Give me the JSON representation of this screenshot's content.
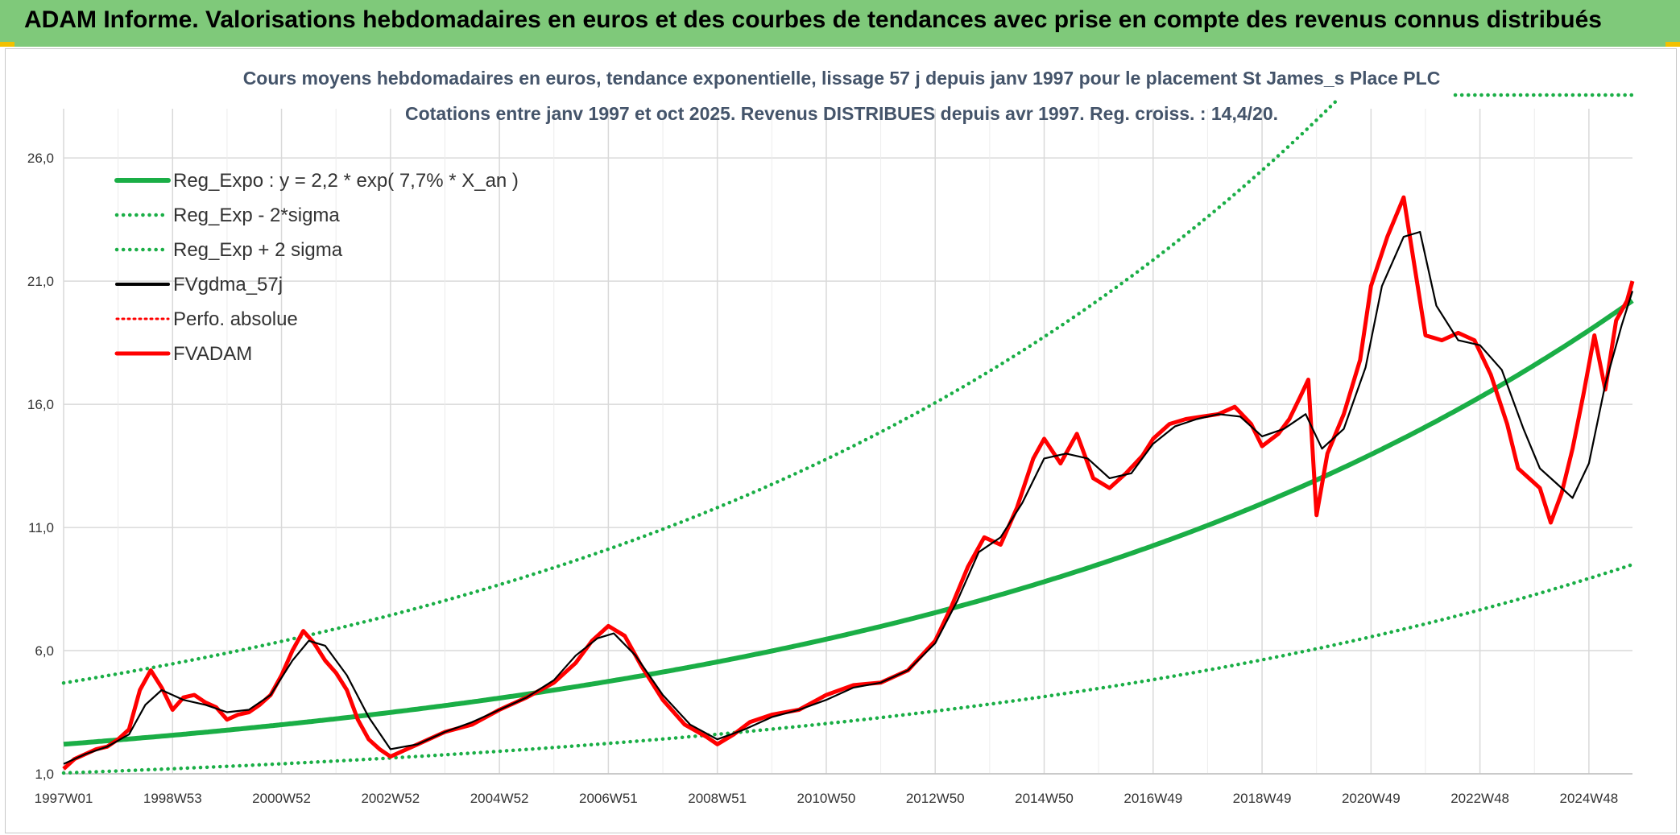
{
  "header": {
    "title": "ADAM Informe. Valorisations hebdomadaires en euros et des courbes de tendances avec prise en compte des revenus connus distribués"
  },
  "colors": {
    "header_bg": "#7fc97a",
    "trend": "#1aae46",
    "series_red": "#ff0000",
    "series_black": "#000000",
    "grid": "#d9d9d9",
    "title_text": "#44546a"
  },
  "chart_data": {
    "type": "line",
    "title": "Cours moyens hebdomadaires en euros, tendance exponentielle, lissage 57 j depuis janv 1997 pour le placement St James_s Place PLC",
    "subtitle": "Cotations entre janv 1997 et oct 2025. Revenus DISTRIBUES depuis avr 1997. Reg. croiss. : 14,4/20.",
    "ylim": [
      1,
      28
    ],
    "y_ticks": [
      1,
      6,
      11,
      16,
      21,
      26
    ],
    "y_tick_labels": [
      "1,0",
      "6,0",
      "11,0",
      "16,0",
      "21,0",
      "26,0"
    ],
    "x_tick_labels": [
      "1997W01",
      "1998W53",
      "2000W52",
      "2002W52",
      "2004W52",
      "2006W51",
      "2008W51",
      "2010W50",
      "2012W50",
      "2014W50",
      "2016W49",
      "2018W49",
      "2020W49",
      "2022W48",
      "2024W48"
    ],
    "x_tick_years": [
      1997.0,
      1999.0,
      2001.0,
      2003.0,
      2005.0,
      2007.0,
      2009.0,
      2011.0,
      2013.0,
      2015.0,
      2017.0,
      2019.0,
      2021.0,
      2023.0,
      2025.0
    ],
    "xlim": [
      1997.0,
      2025.8
    ],
    "grid": true,
    "legend_position": "top-left",
    "legend": [
      "Reg_Expo : y = 2,2 * exp( 7,7% *  X_an )",
      "Reg_Exp - 2*sigma",
      "Reg_Exp + 2 sigma",
      "FVgdma_57j",
      "Perfo. absolue",
      "FVADAM"
    ],
    "trend": {
      "a": 2.2,
      "rate": 0.077,
      "lower_factor": 0.47,
      "upper_factor": 2.13
    },
    "series": [
      {
        "name": "FVADAM",
        "x": [
          1997.0,
          1997.2,
          1997.4,
          1997.6,
          1997.8,
          1998.0,
          1998.2,
          1998.4,
          1998.6,
          1998.8,
          1999.0,
          1999.2,
          1999.4,
          1999.6,
          1999.8,
          2000.0,
          2000.2,
          2000.4,
          2000.6,
          2000.8,
          2001.0,
          2001.2,
          2001.4,
          2001.6,
          2001.8,
          2002.0,
          2002.2,
          2002.4,
          2002.6,
          2002.8,
          2003.0,
          2003.5,
          2004.0,
          2004.5,
          2005.0,
          2005.5,
          2006.0,
          2006.4,
          2006.7,
          2007.0,
          2007.3,
          2007.6,
          2008.0,
          2008.4,
          2008.8,
          2009.0,
          2009.3,
          2009.6,
          2010.0,
          2010.5,
          2011.0,
          2011.5,
          2012.0,
          2012.5,
          2013.0,
          2013.3,
          2013.6,
          2013.9,
          2014.2,
          2014.5,
          2014.8,
          2015.0,
          2015.3,
          2015.6,
          2015.9,
          2016.2,
          2016.5,
          2016.8,
          2017.0,
          2017.3,
          2017.6,
          2017.9,
          2018.2,
          2018.5,
          2018.8,
          2019.0,
          2019.3,
          2019.5,
          2019.7,
          2019.85,
          2020.0,
          2020.2,
          2020.5,
          2020.8,
          2021.0,
          2021.3,
          2021.6,
          2021.8,
          2022.0,
          2022.3,
          2022.6,
          2022.9,
          2023.2,
          2023.5,
          2023.7,
          2023.9,
          2024.1,
          2024.3,
          2024.5,
          2024.7,
          2024.9,
          2025.1,
          2025.3,
          2025.5,
          2025.7,
          2025.8
        ],
        "values": [
          1.2,
          1.6,
          1.8,
          2.0,
          2.1,
          2.4,
          2.8,
          4.4,
          5.2,
          4.5,
          3.6,
          4.1,
          4.2,
          3.9,
          3.7,
          3.2,
          3.4,
          3.5,
          3.8,
          4.2,
          5.0,
          6.0,
          6.8,
          6.3,
          5.6,
          5.1,
          4.4,
          3.2,
          2.4,
          2.0,
          1.7,
          2.2,
          2.7,
          3.0,
          3.6,
          4.1,
          4.7,
          5.5,
          6.4,
          7.0,
          6.6,
          5.4,
          4.0,
          3.0,
          2.5,
          2.2,
          2.6,
          3.1,
          3.4,
          3.6,
          4.2,
          4.6,
          4.7,
          5.2,
          6.4,
          7.8,
          9.4,
          10.6,
          10.3,
          11.8,
          13.8,
          14.6,
          13.6,
          14.8,
          13.0,
          12.6,
          13.2,
          13.9,
          14.6,
          15.2,
          15.4,
          15.5,
          15.6,
          15.9,
          15.2,
          14.3,
          14.8,
          15.4,
          16.3,
          17.0,
          11.5,
          14.0,
          15.6,
          17.8,
          20.8,
          22.8,
          24.4,
          21.6,
          18.8,
          18.6,
          18.9,
          18.6,
          17.2,
          15.2,
          13.4,
          13.0,
          12.6,
          11.2,
          12.4,
          14.2,
          16.4,
          18.8,
          16.6,
          19.4,
          20.2,
          21.0
        ]
      },
      {
        "name": "FVgdma_57j",
        "x": [
          1997.0,
          1997.4,
          1997.8,
          1998.2,
          1998.5,
          1998.8,
          1999.2,
          1999.6,
          2000.0,
          2000.4,
          2000.8,
          2001.2,
          2001.5,
          2001.8,
          2002.2,
          2002.6,
          2003.0,
          2003.5,
          2004.0,
          2004.5,
          2005.0,
          2005.5,
          2006.0,
          2006.4,
          2006.8,
          2007.1,
          2007.5,
          2008.0,
          2008.5,
          2009.0,
          2009.5,
          2010.0,
          2010.5,
          2011.0,
          2011.5,
          2012.0,
          2012.5,
          2013.0,
          2013.4,
          2013.8,
          2014.2,
          2014.6,
          2015.0,
          2015.4,
          2015.8,
          2016.2,
          2016.6,
          2017.0,
          2017.4,
          2017.8,
          2018.2,
          2018.6,
          2019.0,
          2019.4,
          2019.8,
          2020.1,
          2020.5,
          2020.9,
          2021.2,
          2021.6,
          2021.9,
          2022.2,
          2022.6,
          2023.0,
          2023.4,
          2023.8,
          2024.1,
          2024.4,
          2024.7,
          2025.0,
          2025.3,
          2025.6,
          2025.8
        ],
        "values": [
          1.4,
          1.8,
          2.1,
          2.6,
          3.8,
          4.4,
          4.0,
          3.8,
          3.5,
          3.6,
          4.2,
          5.6,
          6.4,
          6.2,
          5.0,
          3.3,
          2.0,
          2.2,
          2.7,
          3.1,
          3.6,
          4.1,
          4.8,
          5.8,
          6.5,
          6.7,
          5.8,
          4.2,
          3.0,
          2.4,
          2.8,
          3.3,
          3.6,
          4.0,
          4.5,
          4.7,
          5.2,
          6.3,
          8.0,
          10.0,
          10.6,
          12.0,
          13.8,
          14.0,
          13.8,
          13.0,
          13.2,
          14.4,
          15.1,
          15.4,
          15.6,
          15.5,
          14.7,
          15.0,
          15.6,
          14.2,
          15.0,
          17.5,
          20.8,
          22.8,
          23.0,
          20.0,
          18.6,
          18.4,
          17.4,
          15.0,
          13.4,
          12.8,
          12.2,
          13.6,
          16.8,
          19.2,
          20.6
        ]
      }
    ]
  }
}
